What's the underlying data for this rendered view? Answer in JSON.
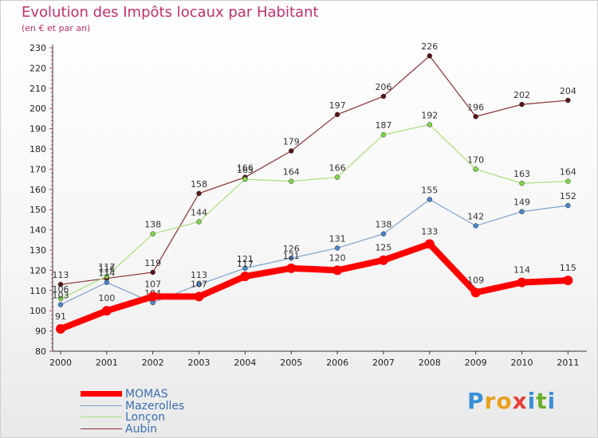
{
  "header": {
    "title": "Evolution des Impôts locaux par Habitant",
    "subtitle": "(en € et par an)"
  },
  "logo": {
    "text": "Proxiti",
    "letters": [
      "P",
      "r",
      "o",
      "x",
      "i",
      "t",
      "i"
    ],
    "colors": [
      "#3a8fd8",
      "#e8a020",
      "#e8a020",
      "#e8403a",
      "#3a8fd8",
      "#6ab02c",
      "#3a8fd8"
    ]
  },
  "chart_data": {
    "type": "line",
    "title": "Evolution des Impôts locaux par Habitant",
    "subtitle": "(en € et par an)",
    "xlabel": "",
    "ylabel": "",
    "ylim": [
      80,
      230
    ],
    "y_ticks": [
      80,
      90,
      100,
      110,
      120,
      130,
      140,
      150,
      160,
      170,
      180,
      190,
      200,
      210,
      220,
      230
    ],
    "categories": [
      "2000",
      "2001",
      "2002",
      "2003",
      "2004",
      "2005",
      "2006",
      "2007",
      "2008",
      "2009",
      "2010",
      "2011"
    ],
    "grid": false,
    "legend_position": "bottom-left",
    "series": [
      {
        "name": "MOMAS",
        "color": "#ff0000",
        "marker_color": "#ff0000",
        "thick": true,
        "values": [
          91,
          100,
          107,
          107,
          117,
          121,
          120,
          125,
          133,
          109,
          114,
          115
        ]
      },
      {
        "name": "Mazerolles",
        "color": "#7ba3cf",
        "marker_color": "#4a86c8",
        "thick": false,
        "values": [
          103,
          114,
          104,
          113,
          121,
          126,
          131,
          138,
          155,
          142,
          149,
          152
        ]
      },
      {
        "name": "Lonçon",
        "color": "#a7e07a",
        "marker_color": "#84d44a",
        "thick": false,
        "values": [
          106,
          117,
          138,
          144,
          165,
          164,
          166,
          187,
          192,
          170,
          163,
          164
        ]
      },
      {
        "name": "Aubin",
        "color": "#8a3030",
        "marker_color": "#5a1515",
        "thick": false,
        "values": [
          113,
          116,
          119,
          158,
          166,
          179,
          197,
          206,
          226,
          196,
          202,
          204
        ]
      }
    ]
  }
}
